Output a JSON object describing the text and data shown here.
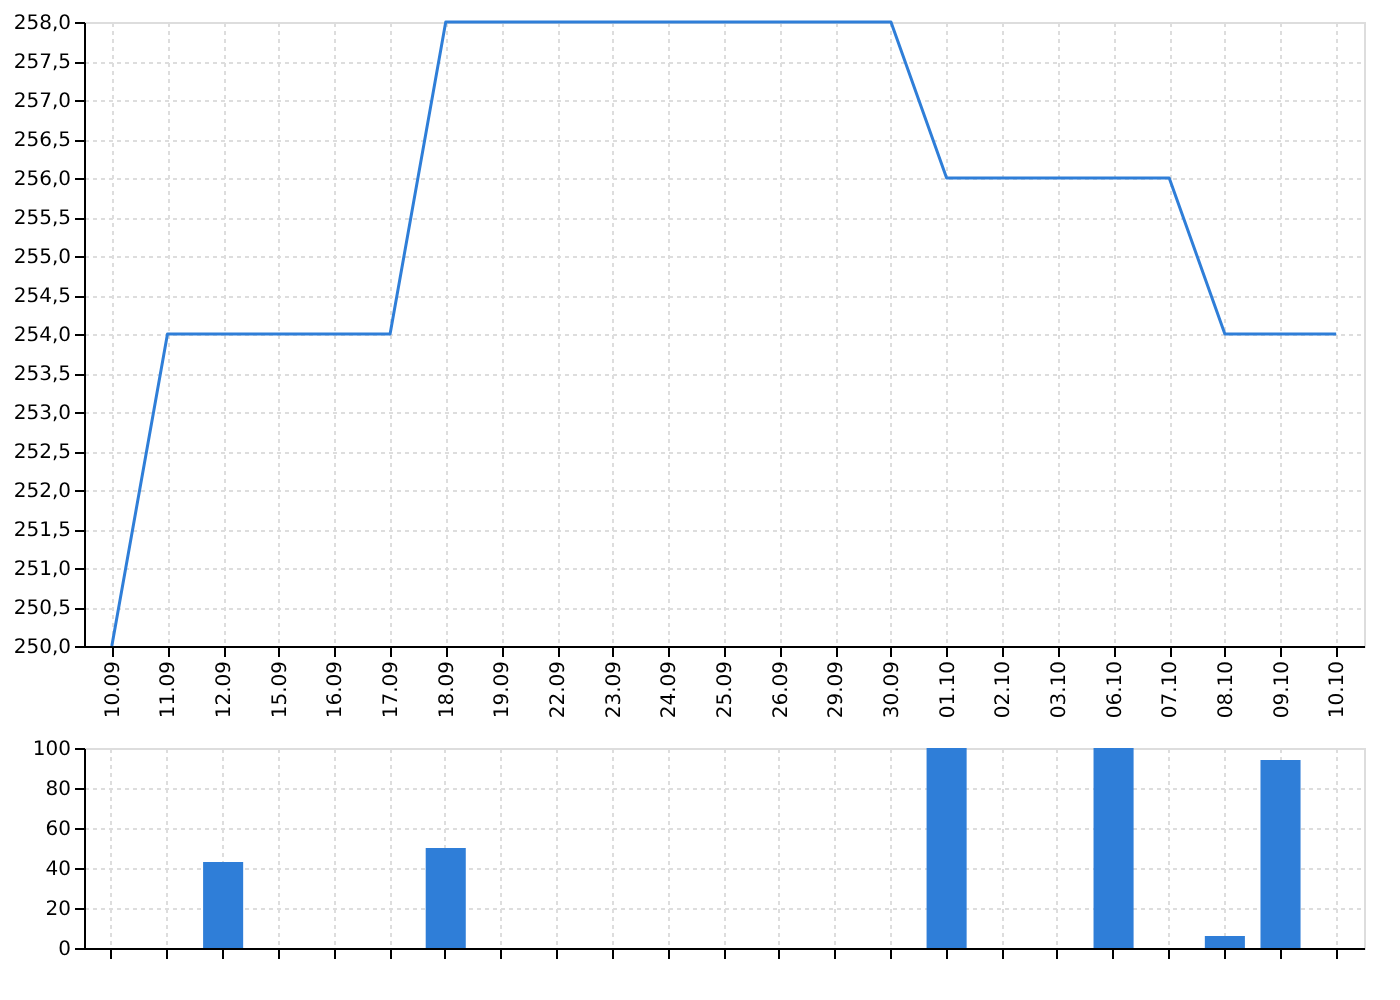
{
  "chart_data": [
    {
      "type": "line",
      "categories": [
        "10.09",
        "11.09",
        "12.09",
        "15.09",
        "16.09",
        "17.09",
        "18.09",
        "19.09",
        "22.09",
        "23.09",
        "24.09",
        "25.09",
        "26.09",
        "29.09",
        "30.09",
        "01.10",
        "02.10",
        "03.10",
        "06.10",
        "07.10",
        "08.10",
        "09.10",
        "10.10"
      ],
      "series": [
        {
          "color": "#2f7ed8",
          "values": [
            250,
            254,
            254,
            254,
            254,
            254,
            258,
            258,
            258,
            258,
            258,
            258,
            258,
            258,
            258,
            256,
            256,
            256,
            256,
            256,
            254,
            254,
            254
          ]
        }
      ],
      "ylim": [
        250,
        258
      ],
      "yticks": [
        {
          "value": 250,
          "label": "250,0"
        },
        {
          "value": 250.5,
          "label": "250,5"
        },
        {
          "value": 251,
          "label": "251,0"
        },
        {
          "value": 251.5,
          "label": "251,5"
        },
        {
          "value": 252,
          "label": "252,0"
        },
        {
          "value": 252.5,
          "label": "252,5"
        },
        {
          "value": 253,
          "label": "253,0"
        },
        {
          "value": 253.5,
          "label": "253,5"
        },
        {
          "value": 254,
          "label": "254,0"
        },
        {
          "value": 254.5,
          "label": "254,5"
        },
        {
          "value": 255,
          "label": "255,0"
        },
        {
          "value": 255.5,
          "label": "255,5"
        },
        {
          "value": 256,
          "label": "256,0"
        },
        {
          "value": 256.5,
          "label": "256,5"
        },
        {
          "value": 257,
          "label": "257,0"
        },
        {
          "value": 257.5,
          "label": "257,5"
        },
        {
          "value": 258,
          "label": "258,0"
        }
      ],
      "grid": true,
      "marker": "none",
      "line_style": "solid"
    },
    {
      "type": "bar",
      "categories": [
        "10.09",
        "11.09",
        "12.09",
        "15.09",
        "16.09",
        "17.09",
        "18.09",
        "19.09",
        "22.09",
        "23.09",
        "24.09",
        "25.09",
        "26.09",
        "29.09",
        "30.09",
        "01.10",
        "02.10",
        "03.10",
        "06.10",
        "07.10",
        "08.10",
        "09.10",
        "10.10"
      ],
      "series": [
        {
          "color": "#2f7ed8",
          "values": [
            0,
            0,
            43,
            0,
            0,
            0,
            50,
            0,
            0,
            0,
            0,
            0,
            0,
            0,
            0,
            100,
            0,
            0,
            100,
            0,
            6,
            94,
            0
          ]
        }
      ],
      "ylim": [
        0,
        100
      ],
      "yticks": [
        0,
        20,
        40,
        60,
        80,
        100
      ],
      "grid": true,
      "tick_labels": "y"
    }
  ]
}
